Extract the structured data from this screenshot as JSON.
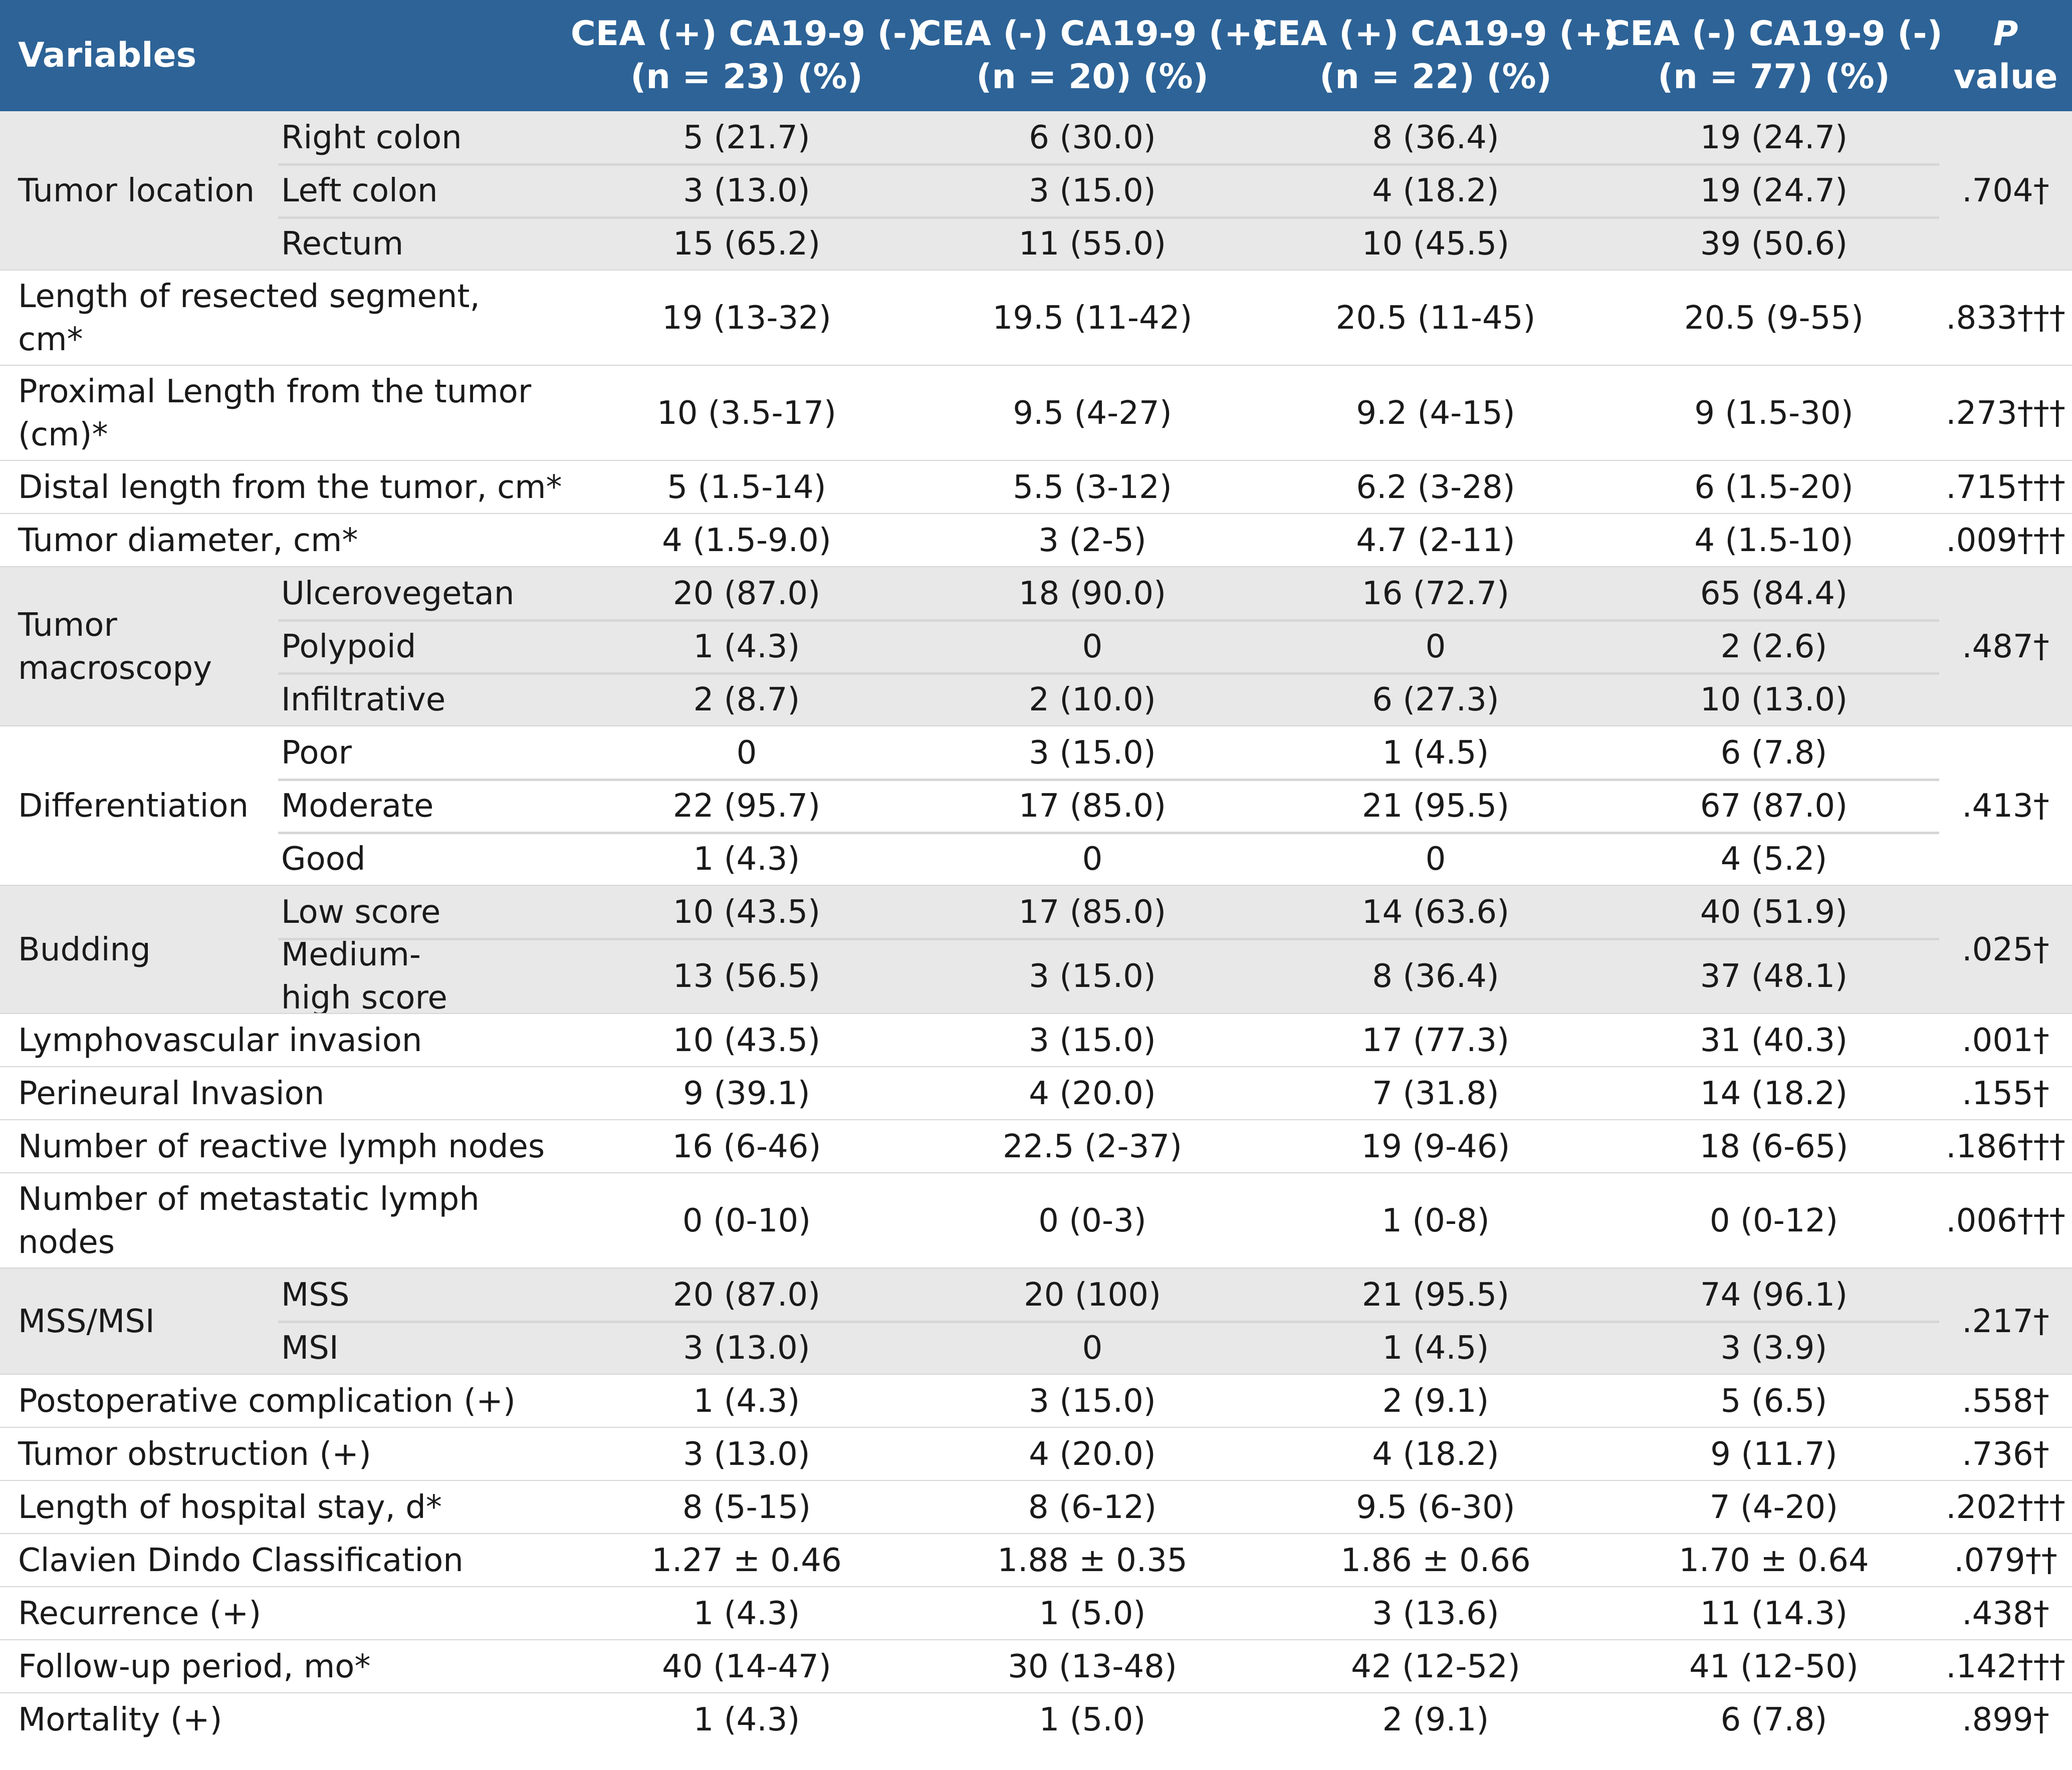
{
  "colors": {
    "header_bg": "#2d6397",
    "header_text": "#ffffff",
    "band_shaded": "#e8e8e8",
    "band_white": "#ffffff",
    "rule": "#d6d6d6"
  },
  "header": {
    "variables": "Variables",
    "col1": {
      "line1": "CEA (+) CA19-9 (-)",
      "line2": "(n = 23) (%)"
    },
    "col2": {
      "line1": "CEA (-) CA19-9 (+)",
      "line2": "(n = 20) (%)"
    },
    "col3": {
      "line1": "CEA (+) CA19-9 (+)",
      "line2": "(n = 22) (%)"
    },
    "col4": {
      "line1": "CEA (-) CA19-9 (-)",
      "line2": "(n = 77) (%)"
    },
    "pvalue": {
      "line1": "P",
      "line2": "value"
    }
  },
  "bands": [
    {
      "label": "Tumor location",
      "shaded": true,
      "p": ".704†",
      "rows": [
        {
          "sub": "Right colon",
          "v": [
            "5 (21.7)",
            "6 (30.0)",
            "8 (36.4)",
            "19 (24.7)"
          ]
        },
        {
          "sub": "Left colon",
          "v": [
            "3 (13.0)",
            "3 (15.0)",
            "4 (18.2)",
            "19 (24.7)"
          ]
        },
        {
          "sub": "Rectum",
          "v": [
            "15 (65.2)",
            "11 (55.0)",
            "10 (45.5)",
            "39 (50.6)"
          ]
        }
      ]
    },
    {
      "label": "Length of resected segment, cm*",
      "shaded": false,
      "p": ".833†††",
      "rows": [
        {
          "sub": "",
          "v": [
            "19 (13-32)",
            "19.5 (11-42)",
            "20.5 (11-45)",
            "20.5 (9-55)"
          ]
        }
      ]
    },
    {
      "label": "Proximal Length from the tumor (cm)*",
      "shaded": false,
      "p": ".273†††",
      "rows": [
        {
          "sub": "",
          "v": [
            "10 (3.5-17)",
            "9.5 (4-27)",
            "9.2 (4-15)",
            "9 (1.5-30)"
          ]
        }
      ]
    },
    {
      "label": "Distal length from the tumor, cm*",
      "shaded": false,
      "p": ".715†††",
      "rows": [
        {
          "sub": "",
          "v": [
            "5 (1.5-14)",
            "5.5 (3-12)",
            "6.2 (3-28)",
            "6 (1.5-20)"
          ]
        }
      ]
    },
    {
      "label": "Tumor diameter, cm*",
      "shaded": false,
      "p": ".009†††",
      "rows": [
        {
          "sub": "",
          "v": [
            "4 (1.5-9.0)",
            "3 (2-5)",
            "4.7 (2-11)",
            "4 (1.5-10)"
          ]
        }
      ]
    },
    {
      "label": "Tumor macroscopy",
      "shaded": true,
      "p": ".487†",
      "rows": [
        {
          "sub": "Ulcerovegetan",
          "v": [
            "20 (87.0)",
            "18 (90.0)",
            "16 (72.7)",
            "65 (84.4)"
          ]
        },
        {
          "sub": "Polypoid",
          "v": [
            "1 (4.3)",
            "0",
            "0",
            "2 (2.6)"
          ]
        },
        {
          "sub": "Infiltrative",
          "v": [
            "2 (8.7)",
            "2 (10.0)",
            "6 (27.3)",
            "10 (13.0)"
          ]
        }
      ]
    },
    {
      "label": "Differentiation",
      "shaded": false,
      "p": ".413†",
      "rows": [
        {
          "sub": "Poor",
          "v": [
            "0",
            "3 (15.0)",
            "1 (4.5)",
            "6 (7.8)"
          ]
        },
        {
          "sub": "Moderate",
          "v": [
            "22 (95.7)",
            "17 (85.0)",
            "21 (95.5)",
            "67 (87.0)"
          ]
        },
        {
          "sub": "Good",
          "v": [
            "1 (4.3)",
            "0",
            "0",
            "4 (5.2)"
          ]
        }
      ]
    },
    {
      "label": "Budding",
      "shaded": true,
      "p": ".025†",
      "rows": [
        {
          "sub": "Low score",
          "v": [
            "10 (43.5)",
            "17 (85.0)",
            "14 (63.6)",
            "40 (51.9)"
          ]
        },
        {
          "sub": "Medium-high score",
          "v": [
            "13 (56.5)",
            "3 (15.0)",
            "8 (36.4)",
            "37 (48.1)"
          ]
        }
      ]
    },
    {
      "label": "Lymphovascular invasion",
      "shaded": false,
      "p": ".001†",
      "rows": [
        {
          "sub": "",
          "v": [
            "10 (43.5)",
            "3 (15.0)",
            "17 (77.3)",
            "31 (40.3)"
          ]
        }
      ]
    },
    {
      "label": "Perineural Invasion",
      "shaded": false,
      "p": ".155†",
      "rows": [
        {
          "sub": "",
          "v": [
            "9 (39.1)",
            "4 (20.0)",
            "7 (31.8)",
            "14 (18.2)"
          ]
        }
      ]
    },
    {
      "label": "Number of reactive lymph nodes",
      "shaded": false,
      "p": ".186†††",
      "rows": [
        {
          "sub": "",
          "v": [
            "16 (6-46)",
            "22.5 (2-37)",
            "19 (9-46)",
            "18 (6-65)"
          ]
        }
      ]
    },
    {
      "label": "Number of metastatic lymph nodes",
      "shaded": false,
      "p": ".006†††",
      "rows": [
        {
          "sub": "",
          "v": [
            "0 (0-10)",
            "0 (0-3)",
            "1 (0-8)",
            "0 (0-12)"
          ]
        }
      ]
    },
    {
      "label": "MSS/MSI",
      "shaded": true,
      "p": ".217†",
      "rows": [
        {
          "sub": "MSS",
          "v": [
            "20 (87.0)",
            "20 (100)",
            "21 (95.5)",
            "74 (96.1)"
          ]
        },
        {
          "sub": "MSI",
          "v": [
            "3 (13.0)",
            "0",
            "1 (4.5)",
            "3 (3.9)"
          ]
        }
      ]
    },
    {
      "label": "Postoperative complication (+)",
      "shaded": false,
      "p": ".558†",
      "rows": [
        {
          "sub": "",
          "v": [
            "1 (4.3)",
            "3 (15.0)",
            "2 (9.1)",
            "5 (6.5)"
          ]
        }
      ]
    },
    {
      "label": "Tumor obstruction (+)",
      "shaded": false,
      "p": ".736†",
      "rows": [
        {
          "sub": "",
          "v": [
            "3 (13.0)",
            "4 (20.0)",
            "4 (18.2)",
            "9 (11.7)"
          ]
        }
      ]
    },
    {
      "label": "Length of hospital stay, d*",
      "shaded": false,
      "p": ".202†††",
      "rows": [
        {
          "sub": "",
          "v": [
            "8 (5-15)",
            "8 (6-12)",
            "9.5 (6-30)",
            "7 (4-20)"
          ]
        }
      ]
    },
    {
      "label": "Clavien Dindo Classification",
      "shaded": false,
      "p": ".079††",
      "rows": [
        {
          "sub": "",
          "v": [
            "1.27 ± 0.46",
            "1.88 ± 0.35",
            "1.86 ± 0.66",
            "1.70 ± 0.64"
          ]
        }
      ]
    },
    {
      "label": "Recurrence (+)",
      "shaded": false,
      "p": ".438†",
      "rows": [
        {
          "sub": "",
          "v": [
            "1 (4.3)",
            "1 (5.0)",
            "3 (13.6)",
            "11 (14.3)"
          ]
        }
      ]
    },
    {
      "label": "Follow-up period, mo*",
      "shaded": false,
      "p": ".142†††",
      "rows": [
        {
          "sub": "",
          "v": [
            "40 (14-47)",
            "30 (13-48)",
            "42 (12-52)",
            "41 (12-50)"
          ]
        }
      ]
    },
    {
      "label": "Mortality (+)",
      "shaded": false,
      "p": ".899†",
      "rows": [
        {
          "sub": "",
          "v": [
            "1 (4.3)",
            "1 (5.0)",
            "2 (9.1)",
            "6 (7.8)"
          ]
        }
      ]
    }
  ]
}
